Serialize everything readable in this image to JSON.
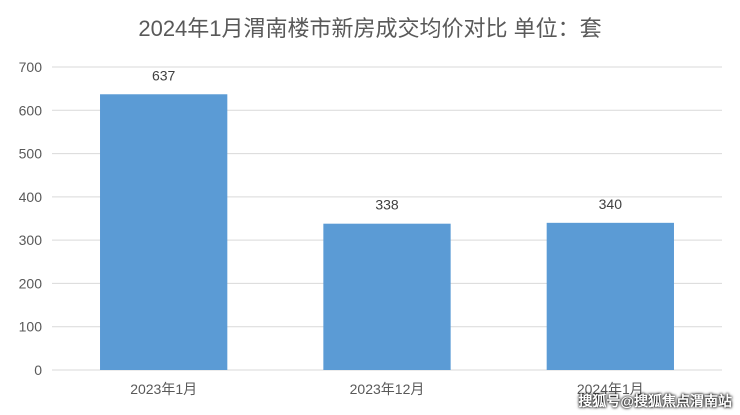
{
  "chart_data": {
    "type": "bar",
    "title": "2024年1月渭南楼市新房成交均价对比 单位：套",
    "categories": [
      "2023年1月",
      "2023年12月",
      "2024年1月"
    ],
    "values": [
      637,
      338,
      340
    ],
    "ylim": [
      0,
      700
    ],
    "yticks": [
      0,
      100,
      200,
      300,
      400,
      500,
      600,
      700
    ],
    "grid": true,
    "bar_color": "#5b9bd5",
    "data_labels": true
  },
  "watermark": "搜狐号@搜狐焦点渭南站"
}
